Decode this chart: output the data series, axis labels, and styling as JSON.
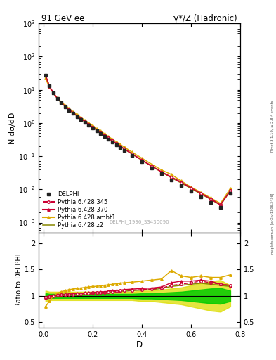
{
  "title_left": "91 GeV ee",
  "title_right": "γ*/Z (Hadronic)",
  "ylabel_main": "N dσ/dD",
  "ylabel_ratio": "Ratio to DELPHI",
  "xlabel": "D",
  "watermark": "DELPHI_1996_S3430090",
  "right_label": "Rivet 3.1.10, ≥ 2.8M events",
  "arxiv_label": "[arXiv:1306.3436]",
  "mcplots_label": "mcplots.cern.ch",
  "data_x": [
    0.008,
    0.024,
    0.04,
    0.056,
    0.072,
    0.088,
    0.104,
    0.12,
    0.136,
    0.152,
    0.168,
    0.184,
    0.2,
    0.216,
    0.232,
    0.248,
    0.264,
    0.28,
    0.296,
    0.312,
    0.328,
    0.36,
    0.4,
    0.44,
    0.48,
    0.52,
    0.56,
    0.6,
    0.64,
    0.68,
    0.72,
    0.76
  ],
  "data_y": [
    28.0,
    13.0,
    8.0,
    5.5,
    4.0,
    3.1,
    2.45,
    1.95,
    1.58,
    1.28,
    1.05,
    0.86,
    0.71,
    0.58,
    0.48,
    0.395,
    0.325,
    0.268,
    0.221,
    0.183,
    0.151,
    0.105,
    0.068,
    0.044,
    0.029,
    0.019,
    0.013,
    0.0087,
    0.0059,
    0.0041,
    0.0028,
    0.0076
  ],
  "data_yerr_lo": [
    1.0,
    0.5,
    0.3,
    0.2,
    0.15,
    0.12,
    0.09,
    0.07,
    0.06,
    0.05,
    0.04,
    0.033,
    0.027,
    0.022,
    0.018,
    0.015,
    0.012,
    0.01,
    0.008,
    0.007,
    0.006,
    0.004,
    0.003,
    0.002,
    0.0012,
    0.0008,
    0.0006,
    0.0004,
    0.0003,
    0.0002,
    0.00015,
    0.0004
  ],
  "data_yerr_hi": [
    1.0,
    0.5,
    0.3,
    0.2,
    0.15,
    0.12,
    0.09,
    0.07,
    0.06,
    0.05,
    0.04,
    0.033,
    0.027,
    0.022,
    0.018,
    0.015,
    0.012,
    0.01,
    0.008,
    0.007,
    0.006,
    0.004,
    0.003,
    0.002,
    0.0012,
    0.0008,
    0.0006,
    0.0004,
    0.0003,
    0.0002,
    0.00015,
    0.0004
  ],
  "p345_ratio": [
    0.97,
    0.99,
    1.0,
    1.01,
    1.02,
    1.02,
    1.03,
    1.03,
    1.04,
    1.04,
    1.05,
    1.05,
    1.06,
    1.06,
    1.07,
    1.07,
    1.08,
    1.08,
    1.09,
    1.1,
    1.1,
    1.11,
    1.12,
    1.13,
    1.15,
    1.2,
    1.22,
    1.25,
    1.28,
    1.25,
    1.22,
    1.2
  ],
  "p370_ratio": [
    0.97,
    1.0,
    1.01,
    1.02,
    1.03,
    1.03,
    1.04,
    1.04,
    1.05,
    1.05,
    1.06,
    1.06,
    1.07,
    1.07,
    1.08,
    1.08,
    1.09,
    1.1,
    1.1,
    1.11,
    1.12,
    1.13,
    1.14,
    1.15,
    1.17,
    1.25,
    1.28,
    1.28,
    1.3,
    1.28,
    1.22,
    1.2
  ],
  "pambt1_ratio": [
    0.8,
    0.9,
    1.0,
    1.05,
    1.08,
    1.1,
    1.12,
    1.13,
    1.14,
    1.15,
    1.16,
    1.17,
    1.18,
    1.18,
    1.19,
    1.2,
    1.21,
    1.22,
    1.23,
    1.24,
    1.25,
    1.26,
    1.28,
    1.3,
    1.32,
    1.48,
    1.38,
    1.35,
    1.38,
    1.35,
    1.35,
    1.4
  ],
  "pz2_ratio": [
    0.96,
    0.98,
    0.99,
    1.0,
    1.01,
    1.01,
    1.02,
    1.02,
    1.03,
    1.03,
    1.04,
    1.04,
    1.05,
    1.05,
    1.06,
    1.06,
    1.07,
    1.07,
    1.08,
    1.09,
    1.09,
    1.1,
    1.11,
    1.12,
    1.14,
    1.18,
    1.2,
    1.22,
    1.24,
    1.22,
    1.2,
    1.18
  ],
  "band_rel_err": [
    0.05,
    0.04,
    0.04,
    0.04,
    0.04,
    0.04,
    0.04,
    0.04,
    0.04,
    0.04,
    0.04,
    0.04,
    0.04,
    0.04,
    0.04,
    0.04,
    0.04,
    0.04,
    0.04,
    0.04,
    0.04,
    0.04,
    0.05,
    0.05,
    0.06,
    0.07,
    0.08,
    0.1,
    0.12,
    0.14,
    0.15,
    0.1
  ],
  "color_data": "#222222",
  "color_p345": "#cc0033",
  "color_p370": "#cc0033",
  "color_pambt1": "#ddaa00",
  "color_pz2": "#888800",
  "band_green_inner": "#00cc00",
  "band_yellow_outer": "#dddd00",
  "ylim_main": [
    0.0005,
    1000
  ],
  "ylim_ratio": [
    0.4,
    2.2
  ],
  "xlim": [
    -0.02,
    0.8
  ]
}
